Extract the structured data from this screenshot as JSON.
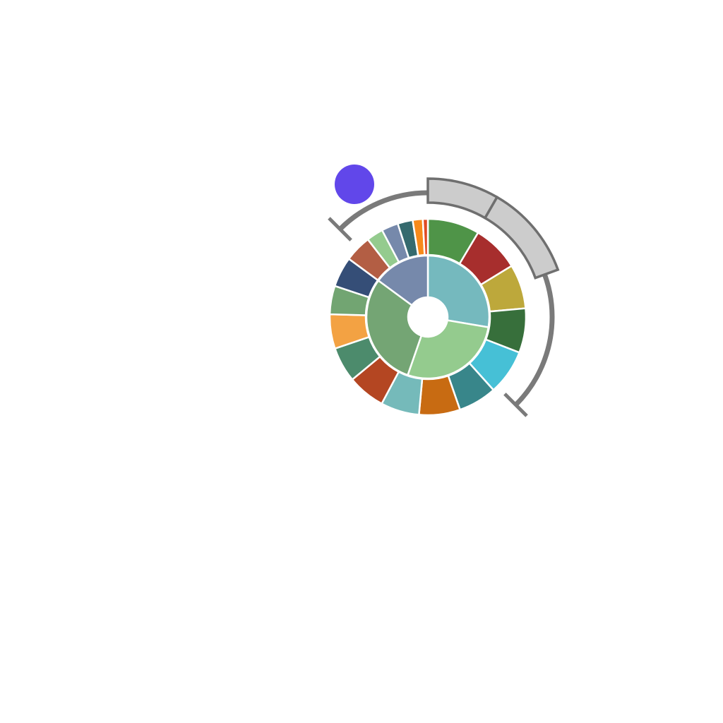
{
  "chart_data": {
    "type": "sunburst",
    "title": "",
    "inner_ring": [
      {
        "value": 26,
        "color": "#75b9be"
      },
      {
        "value": 26,
        "color": "#94cb8e"
      },
      {
        "value": 28,
        "color": "#74a574"
      },
      {
        "value": 14,
        "color": "#7689ab"
      }
    ],
    "outer_ring": [
      {
        "value": 6.2,
        "color": "#4f9448"
      },
      {
        "value": 5.6,
        "color": "#a72e2d"
      },
      {
        "value": 5.3,
        "color": "#bda83b"
      },
      {
        "value": 5.3,
        "color": "#376f3b"
      },
      {
        "value": 5.4,
        "color": "#46c0d6"
      },
      {
        "value": 4.6,
        "color": "#38868a"
      },
      {
        "value": 4.9,
        "color": "#c86b12"
      },
      {
        "value": 4.6,
        "color": "#75baba"
      },
      {
        "value": 4.5,
        "color": "#b44622"
      },
      {
        "value": 4.2,
        "color": "#4c8b6c"
      },
      {
        "value": 4.1,
        "color": "#f3a243"
      },
      {
        "value": 3.4,
        "color": "#72a572"
      },
      {
        "value": 3.6,
        "color": "#354e77"
      },
      {
        "value": 3.2,
        "color": "#b35e44"
      },
      {
        "value": 2.0,
        "color": "#94cb8e"
      },
      {
        "value": 2.0,
        "color": "#7689ab"
      },
      {
        "value": 1.8,
        "color": "#356a6e"
      },
      {
        "value": 1.2,
        "color": "#f78a1a"
      },
      {
        "value": 0.6,
        "color": "#e04a23"
      }
    ],
    "range_arc": {
      "start_deg": -45,
      "end_deg": 135,
      "color": "#7a7a7a"
    },
    "range_bands": [
      {
        "start_deg": 0,
        "end_deg": 30,
        "color": "#cccccc"
      },
      {
        "start_deg": 30,
        "end_deg": 70,
        "color": "#cccccc"
      }
    ],
    "marker": {
      "shape": "circle",
      "color": "#6147ea"
    }
  }
}
